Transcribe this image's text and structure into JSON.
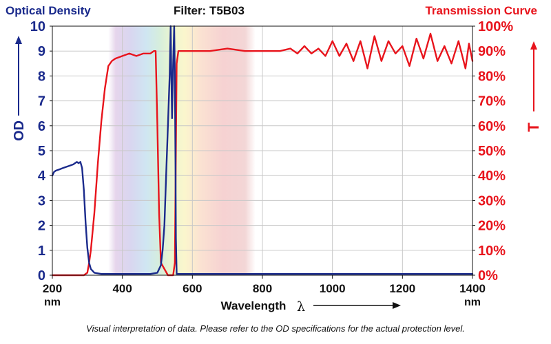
{
  "header": {
    "left_title": "Optical Density",
    "center_title": "Filter: T5B03",
    "right_title": "Transmission Curve"
  },
  "footnote": "Visual interpretation of data. Please refer to the OD specifications for the actual protection level.",
  "colors": {
    "od": "#1a2a8c",
    "transmission": "#e8141c",
    "axis": "#111111",
    "grid": "#c8c8c8"
  },
  "chart_data": {
    "type": "line",
    "xlabel": "Wavelength",
    "xlabel_symbol": "λ",
    "x_unit": "nm",
    "xlim": [
      200,
      1400
    ],
    "x_ticks": [
      "200",
      "400",
      "600",
      "800",
      "1000",
      "1200",
      "1400"
    ],
    "left_axis": {
      "label": "OD",
      "ylim": [
        0,
        10
      ],
      "ticks": [
        "0",
        "1",
        "2",
        "3",
        "4",
        "5",
        "6",
        "7",
        "8",
        "9",
        "10"
      ]
    },
    "right_axis": {
      "label": "T",
      "ylim": [
        0,
        100
      ],
      "ticks": [
        "0%",
        "10%",
        "20%",
        "30%",
        "40%",
        "50%",
        "60%",
        "70%",
        "80%",
        "90%",
        "100%"
      ]
    },
    "grid": true,
    "spectrum_band": [
      360,
      780
    ],
    "series": [
      {
        "name": "Optical Density",
        "axis": "left",
        "x": [
          200,
          205,
          210,
          220,
          230,
          240,
          250,
          260,
          270,
          275,
          280,
          285,
          290,
          295,
          300,
          305,
          310,
          320,
          340,
          360,
          400,
          450,
          480,
          500,
          510,
          515,
          520,
          525,
          530,
          535,
          538,
          540,
          542,
          545,
          548,
          550,
          552,
          553,
          555,
          600,
          700,
          800,
          900,
          1000,
          1100,
          1200,
          1300,
          1400
        ],
        "y": [
          4.0,
          4.15,
          4.2,
          4.25,
          4.3,
          4.35,
          4.4,
          4.45,
          4.55,
          4.5,
          4.55,
          4.3,
          3.4,
          2.1,
          1.1,
          0.5,
          0.25,
          0.1,
          0.05,
          0.05,
          0.05,
          0.05,
          0.05,
          0.1,
          0.4,
          1.0,
          2.0,
          4.0,
          6.0,
          8.0,
          10.0,
          8.0,
          6.3,
          8.5,
          10.0,
          8.0,
          4.0,
          1.5,
          0.05,
          0.05,
          0.05,
          0.05,
          0.05,
          0.05,
          0.05,
          0.05,
          0.05,
          0.05
        ]
      },
      {
        "name": "Transmission Curve",
        "axis": "right",
        "x": [
          200,
          290,
          300,
          305,
          310,
          320,
          330,
          340,
          350,
          360,
          370,
          380,
          400,
          420,
          440,
          460,
          480,
          490,
          495,
          500,
          505,
          510,
          530,
          545,
          550,
          555,
          560,
          600,
          650,
          700,
          750,
          800,
          850,
          880,
          900,
          920,
          940,
          960,
          980,
          1000,
          1020,
          1040,
          1060,
          1080,
          1100,
          1120,
          1140,
          1160,
          1180,
          1200,
          1220,
          1240,
          1260,
          1280,
          1300,
          1320,
          1340,
          1360,
          1380,
          1390,
          1400
        ],
        "y": [
          0,
          0,
          1,
          5,
          10,
          25,
          45,
          62,
          75,
          84,
          86,
          87,
          88,
          89,
          88,
          89,
          89,
          90,
          90,
          60,
          25,
          5,
          0,
          0,
          5,
          85,
          90,
          90,
          90,
          91,
          90,
          90,
          90,
          91,
          89,
          92,
          89,
          91,
          88,
          94,
          88,
          93,
          86,
          94,
          83,
          96,
          86,
          94,
          89,
          92,
          84,
          95,
          87,
          97,
          86,
          92,
          85,
          94,
          83,
          93,
          86
        ]
      }
    ]
  }
}
